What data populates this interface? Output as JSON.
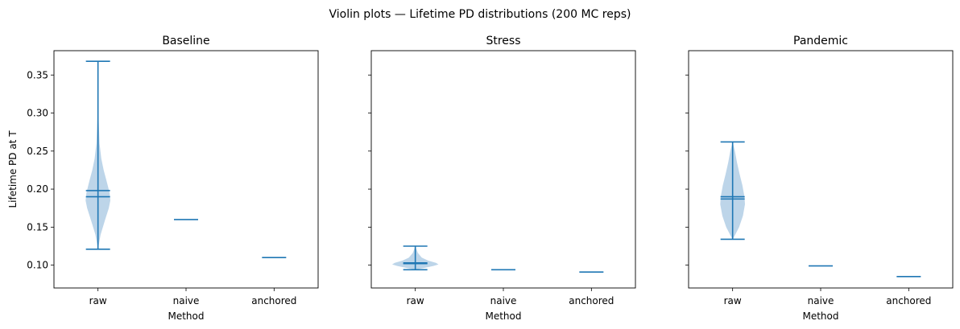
{
  "figure": {
    "suptitle": "Violin plots — Lifetime PD distributions (200 MC reps)"
  },
  "chart_data": {
    "type": "violin",
    "ylabel": "Lifetime PD at T",
    "xlabel": "Method",
    "ylim": [
      0.07,
      0.382
    ],
    "yticks": [
      0.1,
      0.15,
      0.2,
      0.25,
      0.3,
      0.35
    ],
    "ytick_labels": [
      "0.10",
      "0.15",
      "0.20",
      "0.25",
      "0.30",
      "0.35"
    ],
    "shared_y": true,
    "categories": [
      "raw",
      "naive",
      "anchored"
    ],
    "color": "#1f77b4",
    "fill_color": "#b9d3e8",
    "panels": [
      {
        "title": "Baseline",
        "series": [
          {
            "name": "raw",
            "min": 0.121,
            "max": 0.368,
            "mean": 0.198,
            "median": 0.19,
            "spread": "wide",
            "profile": [
              [
                0.121,
                0.0
              ],
              [
                0.14,
                0.1
              ],
              [
                0.16,
                0.28
              ],
              [
                0.175,
                0.42
              ],
              [
                0.185,
                0.48
              ],
              [
                0.195,
                0.45
              ],
              [
                0.21,
                0.34
              ],
              [
                0.225,
                0.22
              ],
              [
                0.24,
                0.13
              ],
              [
                0.26,
                0.06
              ],
              [
                0.29,
                0.025
              ],
              [
                0.33,
                0.008
              ],
              [
                0.368,
                0.0
              ]
            ]
          },
          {
            "name": "naive",
            "min": 0.16,
            "max": 0.16,
            "mean": 0.16,
            "median": 0.16
          },
          {
            "name": "anchored",
            "min": 0.11,
            "max": 0.11,
            "mean": 0.11,
            "median": 0.11
          }
        ]
      },
      {
        "title": "Stress",
        "series": [
          {
            "name": "raw",
            "min": 0.094,
            "max": 0.125,
            "mean": 0.103,
            "median": 0.102,
            "profile": [
              [
                0.094,
                0.0
              ],
              [
                0.096,
                0.3
              ],
              [
                0.099,
                0.7
              ],
              [
                0.101,
                0.9
              ],
              [
                0.103,
                0.8
              ],
              [
                0.106,
                0.5
              ],
              [
                0.11,
                0.25
              ],
              [
                0.116,
                0.1
              ],
              [
                0.125,
                0.0
              ]
            ]
          },
          {
            "name": "naive",
            "min": 0.094,
            "max": 0.094,
            "mean": 0.094,
            "median": 0.094
          },
          {
            "name": "anchored",
            "min": 0.091,
            "max": 0.091,
            "mean": 0.091,
            "median": 0.091
          }
        ]
      },
      {
        "title": "Pandemic",
        "series": [
          {
            "name": "raw",
            "min": 0.134,
            "max": 0.262,
            "mean": 0.19,
            "median": 0.187,
            "profile": [
              [
                0.134,
                0.0
              ],
              [
                0.14,
                0.1
              ],
              [
                0.15,
                0.25
              ],
              [
                0.165,
                0.4
              ],
              [
                0.18,
                0.48
              ],
              [
                0.19,
                0.46
              ],
              [
                0.205,
                0.38
              ],
              [
                0.22,
                0.27
              ],
              [
                0.235,
                0.17
              ],
              [
                0.25,
                0.09
              ],
              [
                0.262,
                0.0
              ]
            ]
          },
          {
            "name": "naive",
            "min": 0.099,
            "max": 0.099,
            "mean": 0.099,
            "median": 0.099
          },
          {
            "name": "anchored",
            "min": 0.085,
            "max": 0.085,
            "mean": 0.085,
            "median": 0.085
          }
        ]
      }
    ]
  }
}
